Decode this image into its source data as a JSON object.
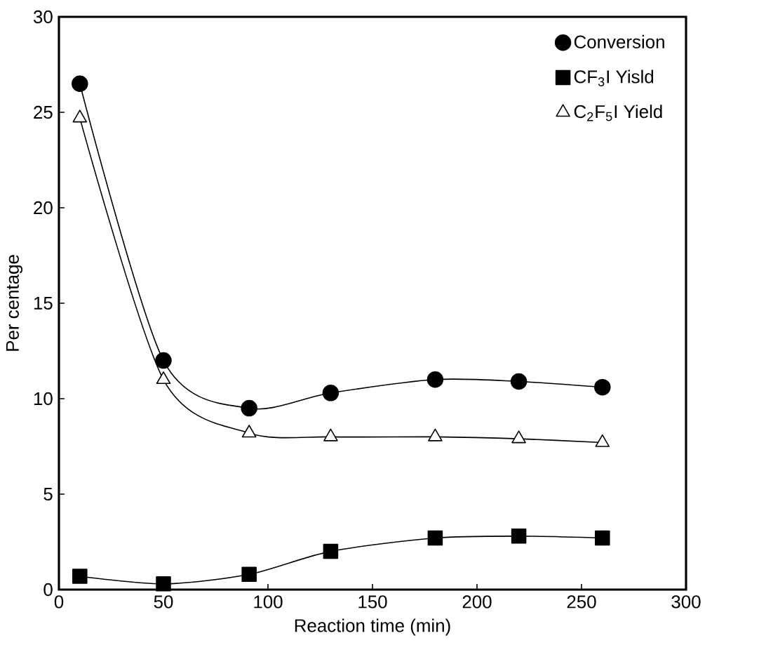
{
  "chart_data": {
    "type": "line",
    "xlabel": "Reaction time (min)",
    "ylabel": "Per centage",
    "x": [
      10,
      50,
      91,
      130,
      180,
      220,
      260
    ],
    "series": [
      {
        "name": "Conversion",
        "color": "#000000",
        "marker": "circle",
        "values": [
          26.5,
          12.0,
          9.5,
          10.3,
          11.0,
          10.9,
          10.6
        ]
      },
      {
        "name": "CF$_{3}$I Yisld",
        "color": "#000000",
        "marker": "square",
        "values": [
          0.7,
          0.3,
          0.8,
          2.0,
          2.7,
          2.8,
          2.7
        ]
      },
      {
        "name": "C$_{2}$F$_{5}$I  Yield",
        "color": "#000000",
        "marker": "triangle",
        "values": [
          24.7,
          11.0,
          8.2,
          8.0,
          8.0,
          7.9,
          7.7
        ]
      }
    ],
    "xlim": [
      0,
      300
    ],
    "ylim": [
      0,
      30
    ],
    "xticks": [
      0,
      50,
      100,
      150,
      200,
      250,
      300
    ],
    "yticks": [
      0,
      5,
      10,
      15,
      20,
      25,
      30
    ],
    "legend": "top right",
    "grid": false,
    "line_style": "solid"
  }
}
